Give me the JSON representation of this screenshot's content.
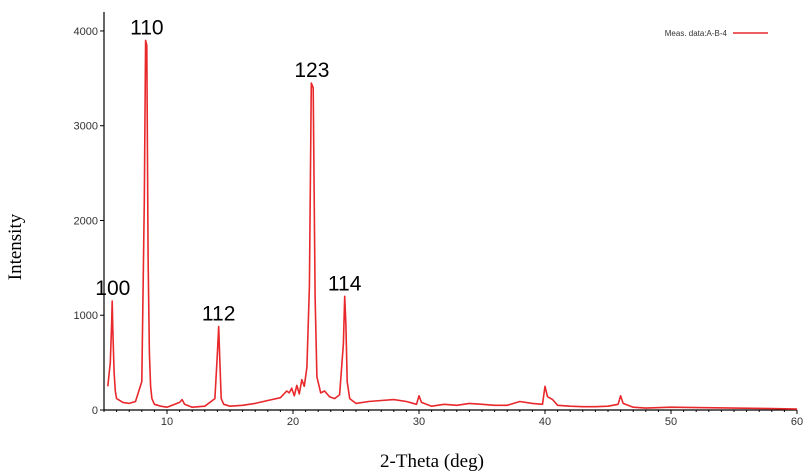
{
  "chart_data": {
    "type": "line",
    "title": "",
    "xlabel": "2-Theta (deg)",
    "ylabel": "Intensity",
    "xlim": [
      5,
      60
    ],
    "ylim": [
      0,
      4200
    ],
    "xticks": [
      10,
      20,
      30,
      40,
      50,
      60
    ],
    "yticks": [
      0,
      1000,
      2000,
      3000,
      4000
    ],
    "grid": false,
    "legend": {
      "position": "top-right",
      "entries": [
        "Meas. data:A-B-4"
      ]
    },
    "colors": {
      "series": "#e8282b",
      "axis": "#000000"
    },
    "series": [
      {
        "name": "Meas. data:A-B-4",
        "x": [
          5.3,
          5.5,
          5.6,
          5.65,
          5.7,
          5.8,
          5.9,
          6.0,
          6.5,
          7.0,
          7.5,
          8.0,
          8.2,
          8.3,
          8.4,
          8.5,
          8.6,
          8.7,
          8.8,
          9.0,
          9.5,
          10.0,
          11.0,
          11.2,
          11.4,
          12.0,
          13.0,
          13.8,
          14.0,
          14.1,
          14.2,
          14.3,
          14.5,
          15.0,
          16.0,
          17.0,
          18.0,
          19.0,
          19.5,
          19.7,
          19.9,
          20.1,
          20.3,
          20.5,
          20.7,
          20.9,
          21.1,
          21.3,
          21.45,
          21.6,
          21.75,
          21.9,
          22.2,
          22.5,
          22.9,
          23.3,
          23.7,
          24.0,
          24.1,
          24.2,
          24.3,
          24.5,
          25.0,
          26.0,
          27.0,
          28.0,
          29.0,
          29.8,
          30.0,
          30.2,
          31.0,
          32.0,
          33.0,
          34.0,
          35.0,
          36.0,
          37.0,
          38.0,
          39.0,
          39.8,
          40.0,
          40.2,
          40.6,
          41.0,
          42.0,
          43.0,
          44.0,
          45.0,
          45.8,
          46.0,
          46.2,
          47.0,
          48.0,
          50.0,
          52.0,
          55.0,
          58.0,
          60.0
        ],
        "y": [
          250,
          500,
          900,
          1150,
          850,
          400,
          200,
          120,
          80,
          70,
          90,
          300,
          2200,
          3900,
          3850,
          1600,
          600,
          250,
          120,
          60,
          40,
          30,
          80,
          110,
          60,
          30,
          40,
          120,
          600,
          880,
          500,
          120,
          60,
          40,
          50,
          70,
          100,
          130,
          200,
          180,
          230,
          150,
          260,
          170,
          320,
          250,
          450,
          1300,
          3450,
          3400,
          1200,
          350,
          180,
          200,
          140,
          120,
          160,
          700,
          1200,
          900,
          300,
          120,
          70,
          90,
          100,
          110,
          90,
          60,
          150,
          80,
          40,
          60,
          50,
          70,
          60,
          50,
          50,
          90,
          70,
          60,
          250,
          140,
          110,
          50,
          40,
          35,
          35,
          40,
          60,
          150,
          70,
          30,
          20,
          30,
          25,
          20,
          15,
          10
        ]
      }
    ],
    "annotations": [
      {
        "text": "100",
        "x": 5.7,
        "y": 1150
      },
      {
        "text": "110",
        "x": 8.4,
        "y": 3900
      },
      {
        "text": "112",
        "x": 14.1,
        "y": 880
      },
      {
        "text": "123",
        "x": 21.5,
        "y": 3450
      },
      {
        "text": "114",
        "x": 24.1,
        "y": 1200
      }
    ]
  }
}
